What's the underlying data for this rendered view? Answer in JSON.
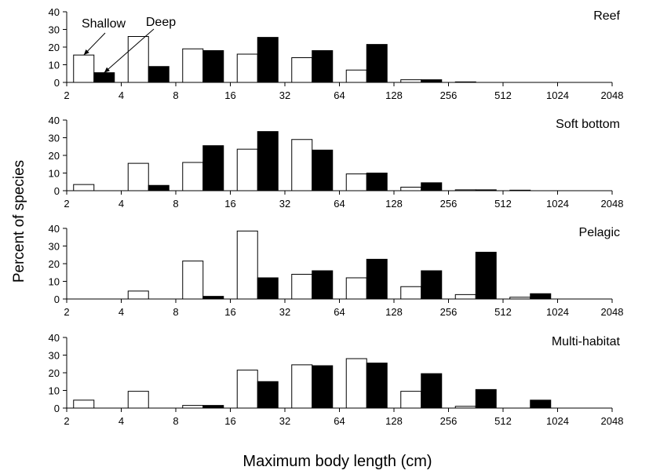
{
  "chart_data": {
    "type": "bar",
    "xlabel": "Maximum body length (cm)",
    "ylabel": "Percent of species",
    "x_ticks": [
      "2",
      "4",
      "8",
      "16",
      "32",
      "64",
      "128",
      "256",
      "512",
      "1024",
      "2048"
    ],
    "x_scale": "log2",
    "ylim": [
      0,
      40
    ],
    "y_ticks": [
      "0",
      "10",
      "20",
      "30",
      "40"
    ],
    "grid": false,
    "colors": {
      "Shallow": "#ffffff",
      "Deep": "#000000"
    },
    "annotations": [
      {
        "text": "Shallow",
        "points_to_series": "Shallow",
        "panel": "Reef"
      },
      {
        "text": "Deep",
        "points_to_series": "Deep",
        "panel": "Reef"
      }
    ],
    "panels": [
      {
        "title": "Reef",
        "series": [
          {
            "name": "Shallow",
            "values": [
              15.5,
              26,
              19,
              16,
              14,
              7,
              1.5,
              0.3,
              0,
              0
            ]
          },
          {
            "name": "Deep",
            "values": [
              5.5,
              9,
              18,
              25.5,
              18,
              21.5,
              1.5,
              0,
              0,
              0
            ]
          }
        ]
      },
      {
        "title": "Soft bottom",
        "series": [
          {
            "name": "Shallow",
            "values": [
              3.5,
              15.5,
              16,
              23.5,
              29,
              9.5,
              2,
              0.5,
              0.3,
              0
            ]
          },
          {
            "name": "Deep",
            "values": [
              0,
              3,
              25.5,
              33.5,
              23,
              10,
              4.5,
              0.5,
              0,
              0
            ]
          }
        ]
      },
      {
        "title": "Pelagic",
        "series": [
          {
            "name": "Shallow",
            "values": [
              0,
              4.5,
              21.5,
              38.5,
              14,
              12,
              7,
              2.5,
              1,
              0
            ]
          },
          {
            "name": "Deep",
            "values": [
              0,
              0,
              1.5,
              12,
              16,
              22.5,
              16,
              26.5,
              3,
              0
            ]
          }
        ]
      },
      {
        "title": "Multi-habitat",
        "series": [
          {
            "name": "Shallow",
            "values": [
              4.5,
              9.5,
              1.5,
              21.5,
              24.5,
              28,
              9.5,
              1,
              0,
              0
            ]
          },
          {
            "name": "Deep",
            "values": [
              0,
              0,
              1.5,
              15,
              24,
              25.5,
              19.5,
              10.5,
              4.5,
              0
            ]
          }
        ]
      }
    ]
  }
}
